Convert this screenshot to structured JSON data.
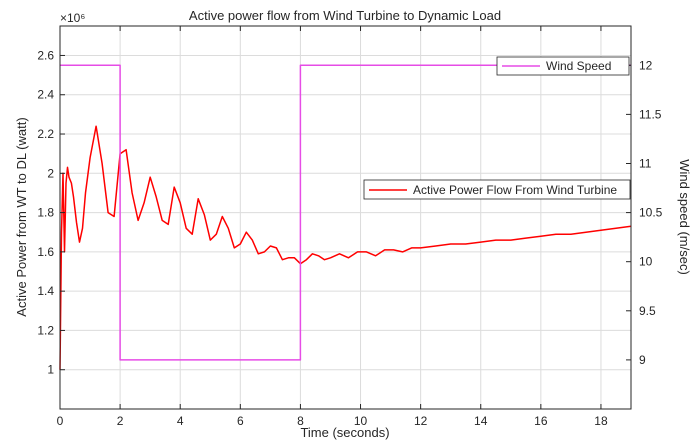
{
  "chart_data": {
    "type": "line",
    "title": "Active power flow from Wind Turbine to Dynamic Load",
    "xlabel": "Time (seconds)",
    "ylabel_left": "Active Power from WT to DL (watt)",
    "ylabel_right": "Wind speed (m/sec)",
    "left_exponent": "×10⁶",
    "xlim": [
      0,
      19
    ],
    "ylim_left": [
      0.8,
      2.75
    ],
    "ylim_right": [
      8.5,
      12.4
    ],
    "x_ticks": [
      0,
      2,
      4,
      6,
      8,
      10,
      12,
      14,
      16,
      18
    ],
    "x_tick_labels": [
      "0",
      "2",
      "4",
      "6",
      "8",
      "10",
      "12",
      "14",
      "16",
      "18"
    ],
    "y_left_ticks": [
      1,
      1.2,
      1.4,
      1.6,
      1.8,
      2,
      2.2,
      2.4,
      2.6
    ],
    "y_left_tick_labels": [
      "1",
      "1.2",
      "1.4",
      "1.6",
      "1.8",
      "2",
      "2.2",
      "2.4",
      "2.6"
    ],
    "y_right_ticks": [
      9,
      9.5,
      10,
      10.5,
      11,
      11.5,
      12
    ],
    "y_right_tick_labels": [
      "9",
      "9.5",
      "10",
      "10.5",
      "11",
      "11.5",
      "12"
    ],
    "grid": true,
    "series": [
      {
        "name": "Active Power Flow From Wind Turbine",
        "axis": "left",
        "color": "#ff0000",
        "x": [
          0,
          0.05,
          0.1,
          0.15,
          0.2,
          0.25,
          0.3,
          0.38,
          0.45,
          0.55,
          0.65,
          0.75,
          0.85,
          1.0,
          1.2,
          1.4,
          1.6,
          1.8,
          2.0,
          2.2,
          2.4,
          2.6,
          2.8,
          3.0,
          3.2,
          3.4,
          3.6,
          3.8,
          4.0,
          4.2,
          4.4,
          4.6,
          4.8,
          5.0,
          5.2,
          5.4,
          5.6,
          5.8,
          6.0,
          6.2,
          6.4,
          6.6,
          6.8,
          7.0,
          7.2,
          7.4,
          7.6,
          7.8,
          8.0,
          8.2,
          8.4,
          8.6,
          8.8,
          9.0,
          9.3,
          9.6,
          9.9,
          10.2,
          10.5,
          10.8,
          11.1,
          11.4,
          11.7,
          12.0,
          12.5,
          13.0,
          13.5,
          14.0,
          14.5,
          15.0,
          15.5,
          16.0,
          16.5,
          17.0,
          17.5,
          18.0,
          18.5,
          19.0
        ],
        "y": [
          1.0,
          1.7,
          2.0,
          1.6,
          1.95,
          2.03,
          1.98,
          1.95,
          1.88,
          1.75,
          1.65,
          1.72,
          1.9,
          2.08,
          2.24,
          2.05,
          1.8,
          1.78,
          2.1,
          2.12,
          1.9,
          1.76,
          1.85,
          1.98,
          1.88,
          1.76,
          1.74,
          1.93,
          1.85,
          1.72,
          1.69,
          1.87,
          1.79,
          1.66,
          1.69,
          1.78,
          1.72,
          1.62,
          1.64,
          1.7,
          1.66,
          1.59,
          1.6,
          1.63,
          1.62,
          1.56,
          1.57,
          1.57,
          1.54,
          1.56,
          1.59,
          1.58,
          1.56,
          1.57,
          1.59,
          1.57,
          1.6,
          1.6,
          1.58,
          1.61,
          1.61,
          1.6,
          1.62,
          1.62,
          1.63,
          1.64,
          1.64,
          1.65,
          1.66,
          1.66,
          1.67,
          1.68,
          1.69,
          1.69,
          1.7,
          1.71,
          1.72,
          1.73
        ]
      },
      {
        "name": "Wind Speed",
        "axis": "right",
        "color": "#e64ce6",
        "x": [
          0,
          2,
          2,
          8,
          8,
          19
        ],
        "y": [
          12,
          12,
          9,
          9,
          12,
          12
        ]
      }
    ],
    "legends": [
      {
        "series": "Wind Speed",
        "placement": "top-right"
      },
      {
        "series": "Active Power Flow From Wind Turbine",
        "placement": "center-right"
      }
    ]
  }
}
